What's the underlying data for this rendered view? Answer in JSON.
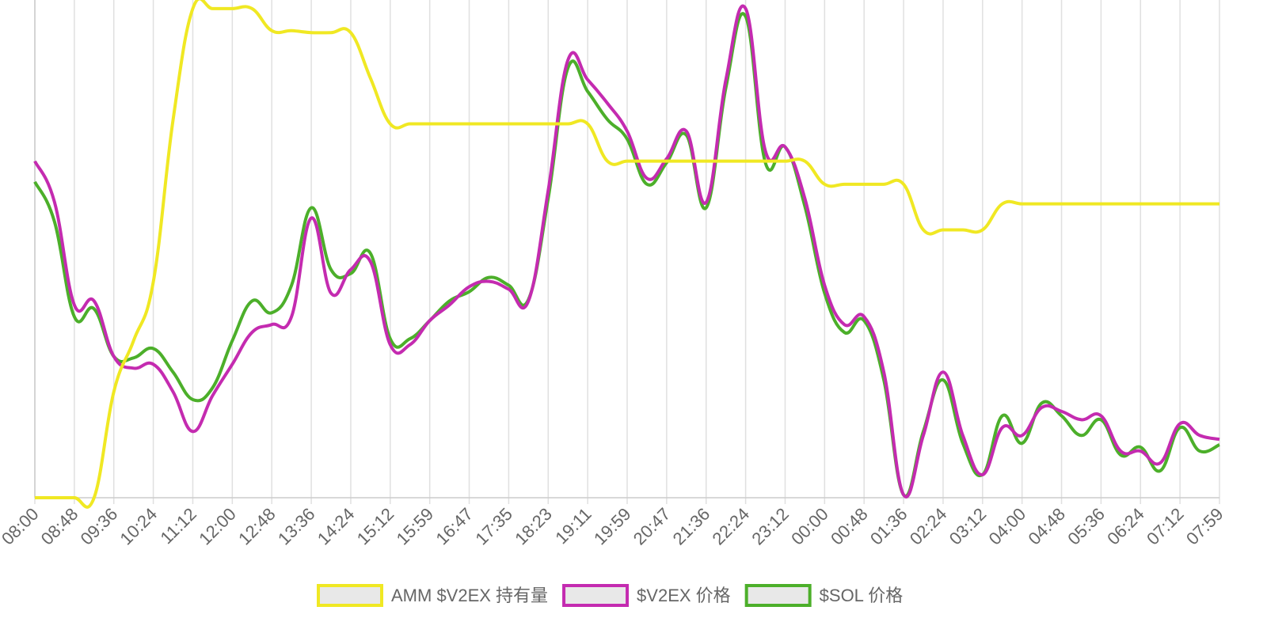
{
  "chart_data": {
    "type": "line",
    "categories": [
      "08:00",
      null,
      "08:48",
      null,
      "09:36",
      null,
      "10:24",
      null,
      "11:12",
      null,
      "12:00",
      null,
      "12:48",
      null,
      "13:36",
      null,
      "14:24",
      null,
      "15:12",
      null,
      "15:59",
      null,
      "16:47",
      null,
      "17:35",
      null,
      "18:23",
      null,
      "19:11",
      null,
      "19:59",
      null,
      "20:47",
      null,
      "21:36",
      null,
      "22:24",
      null,
      "23:12",
      null,
      "00:00",
      null,
      "00:48",
      null,
      "01:36",
      null,
      "02:24",
      null,
      "03:12",
      null,
      "04:00",
      null,
      "04:48",
      null,
      "05:36",
      null,
      "06:24",
      null,
      "07:12",
      null,
      "07:59"
    ],
    "ylim": [
      0,
      100
    ],
    "grid": true,
    "legend": "bottom",
    "series": [
      {
        "name": "AMM $V2EX 持有量",
        "color": "#f0e823",
        "values": [
          0,
          0,
          0,
          0,
          21.6,
          32,
          44,
          77,
          99.7,
          99.7,
          99.7,
          99.7,
          95.2,
          95.2,
          94.8,
          94.8,
          94.8,
          85.5,
          76.2,
          76.2,
          76.2,
          76.2,
          76.2,
          76.2,
          76.2,
          76.2,
          76.2,
          76.2,
          76.2,
          68.6,
          68.6,
          68.6,
          68.6,
          68.6,
          68.6,
          68.6,
          68.6,
          68.6,
          68.6,
          68.6,
          63.9,
          63.9,
          63.9,
          63.9,
          63.9,
          54.6,
          54.6,
          54.6,
          54.6,
          59.9,
          59.9,
          59.9,
          59.9,
          59.9,
          59.9,
          59.9,
          59.9,
          59.9,
          59.9,
          59.9,
          59.9
        ]
      },
      {
        "name": "$V2EX 价格",
        "color": "#c42bb0",
        "values": [
          68.6,
          60.2,
          39.3,
          40.1,
          28.8,
          26.4,
          27.2,
          21.6,
          13.5,
          20.8,
          27.2,
          33.7,
          35.3,
          36.9,
          57,
          41.7,
          46.5,
          48.1,
          31.2,
          31.2,
          36.1,
          39.3,
          43,
          44.1,
          42.5,
          40.1,
          62.6,
          89.2,
          85.2,
          80.4,
          74.7,
          65.1,
          69.1,
          74.7,
          60.2,
          85.2,
          99.7,
          70.7,
          71.5,
          61,
          43.3,
          35.3,
          36.9,
          25.6,
          0.6,
          12.7,
          25.6,
          12.7,
          4.7,
          14.3,
          12.7,
          18.4,
          17.6,
          15.9,
          16.7,
          9.5,
          9.5,
          7.1,
          15.1,
          12.7,
          11.9
        ]
      },
      {
        "name": "$SOL 价格",
        "color": "#4caf2a",
        "values": [
          64.4,
          56.2,
          36.9,
          38.5,
          28.8,
          28.5,
          30.4,
          25.6,
          20,
          22.4,
          32,
          40.1,
          37.7,
          43.3,
          59.1,
          46.5,
          45.7,
          49.8,
          32.4,
          32.4,
          36.1,
          40.1,
          42,
          44.9,
          43.3,
          40.4,
          61,
          87.6,
          82.8,
          77.1,
          73.1,
          63.9,
          68.3,
          73.9,
          59.1,
          83.6,
          98.1,
          68.3,
          71.5,
          59.4,
          41.7,
          33.7,
          36.1,
          24,
          0.6,
          13.5,
          24,
          11.1,
          4.7,
          16.7,
          11.1,
          19.3,
          16.7,
          12.7,
          15.9,
          8.7,
          10.3,
          5.5,
          14.3,
          9.5,
          10.8
        ]
      }
    ]
  }
}
